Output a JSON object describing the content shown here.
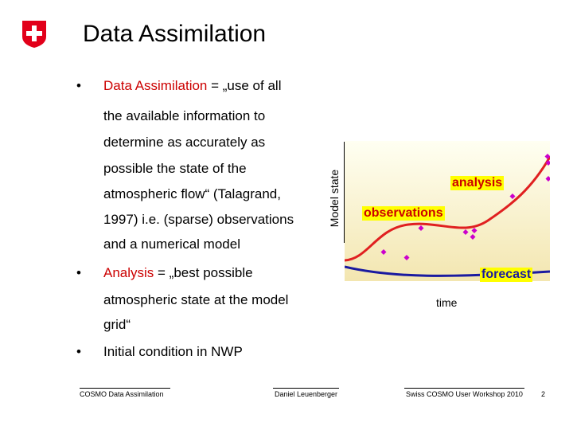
{
  "header": {
    "title": "Data Assimilation"
  },
  "bullets": {
    "b1_term": "Data Assimilation",
    "b1_rest": " = „use of all",
    "b1_lines": [
      "the available information to",
      "determine as accurately as",
      "possible the state of the",
      "atmospheric flow“ (Talagrand,",
      "1997)  i.e. (sparse) observations",
      "and a numerical model"
    ],
    "b2_term": "Analysis",
    "b2_rest": " = „best possible",
    "b2_lines": [
      "atmospheric state at the model",
      "grid“"
    ],
    "b3": "Initial condition in NWP"
  },
  "figure": {
    "ylabel": "Model state",
    "analysis_label": "analysis",
    "observations_label": "observations",
    "forecast_label": "forecast",
    "time_label": "time",
    "colors": {
      "analysis_line": "#e02020",
      "forecast_line": "#1a1aa0",
      "observation_marker": "#cc00cc",
      "background_top": "#fffff0",
      "background_bottom": "#f5e9b8",
      "label_bg": "#ffff00"
    }
  },
  "footer": {
    "left": "COSMO Data Assimilation",
    "center": "Daniel Leuenberger",
    "right": "Swiss COSMO User Workshop 2010",
    "page": "2"
  }
}
